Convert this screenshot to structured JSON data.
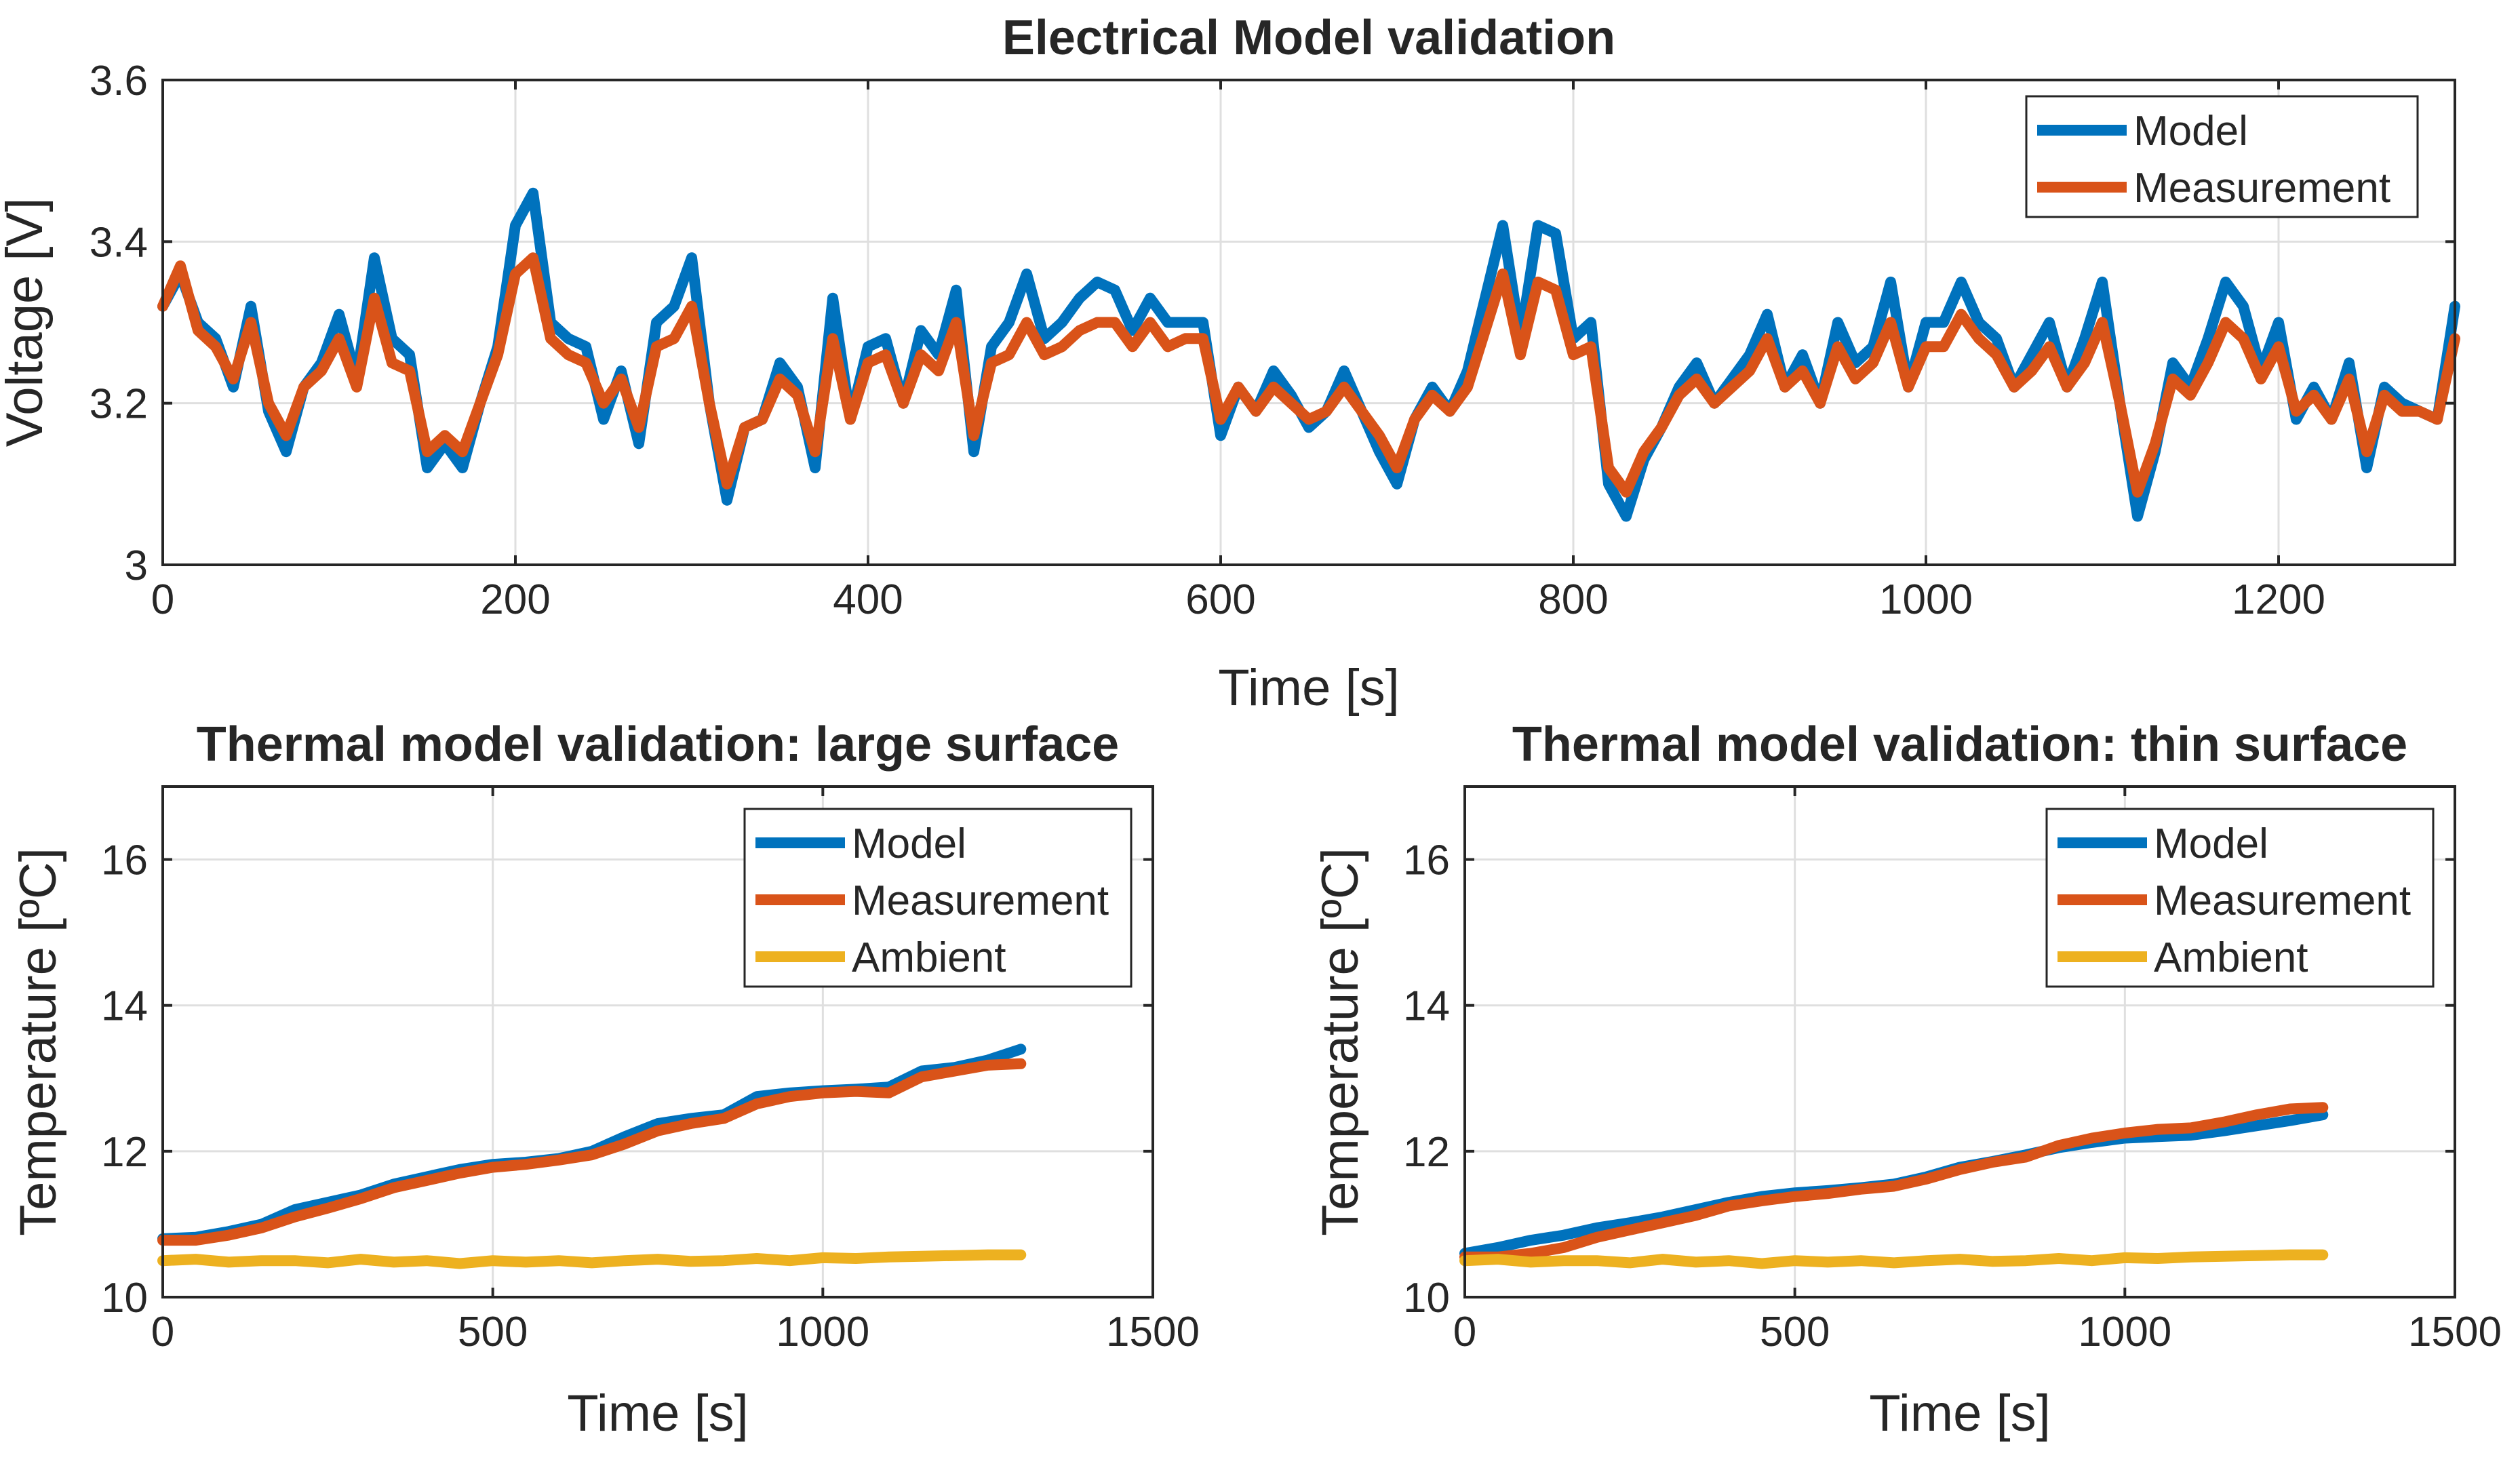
{
  "chart_data": [
    {
      "type": "line",
      "title": "Electrical Model validation",
      "xlabel": "Time [s]",
      "ylabel": "Voltage [V]",
      "xlim": [
        0,
        1300
      ],
      "ylim": [
        3.0,
        3.6
      ],
      "xticks": [
        0,
        200,
        400,
        600,
        800,
        1000,
        1200
      ],
      "yticks": [
        3.0,
        3.2,
        3.4,
        3.6
      ],
      "xtick_labels": [
        "0",
        "200",
        "400",
        "600",
        "800",
        "1000",
        "1200"
      ],
      "ytick_labels": [
        "3",
        "3.2",
        "3.4",
        "3.6"
      ],
      "grid": true,
      "legend_position": "top-right",
      "x": [
        0,
        10,
        20,
        30,
        40,
        50,
        60,
        70,
        80,
        90,
        100,
        110,
        120,
        130,
        140,
        150,
        160,
        170,
        180,
        190,
        200,
        210,
        220,
        230,
        240,
        250,
        260,
        270,
        280,
        290,
        300,
        310,
        320,
        330,
        340,
        350,
        360,
        370,
        380,
        390,
        400,
        410,
        420,
        430,
        440,
        450,
        460,
        470,
        480,
        490,
        500,
        510,
        520,
        530,
        540,
        550,
        560,
        570,
        580,
        590,
        600,
        610,
        620,
        630,
        640,
        650,
        660,
        670,
        680,
        690,
        700,
        710,
        720,
        730,
        740,
        750,
        760,
        770,
        780,
        790,
        800,
        810,
        820,
        830,
        840,
        850,
        860,
        870,
        880,
        890,
        900,
        910,
        920,
        930,
        940,
        950,
        960,
        970,
        980,
        990,
        1000,
        1010,
        1020,
        1030,
        1040,
        1050,
        1060,
        1070,
        1080,
        1090,
        1100,
        1110,
        1120,
        1130,
        1140,
        1150,
        1160,
        1170,
        1180,
        1190,
        1200,
        1210,
        1220,
        1230,
        1240,
        1250,
        1260,
        1270,
        1280,
        1290,
        1300
      ],
      "series": [
        {
          "name": "Model",
          "color": "#0072bd",
          "values": [
            3.32,
            3.36,
            3.3,
            3.28,
            3.22,
            3.32,
            3.19,
            3.14,
            3.22,
            3.25,
            3.31,
            3.23,
            3.38,
            3.28,
            3.26,
            3.12,
            3.15,
            3.12,
            3.2,
            3.27,
            3.42,
            3.46,
            3.3,
            3.28,
            3.27,
            3.18,
            3.24,
            3.15,
            3.3,
            3.32,
            3.38,
            3.2,
            3.08,
            3.17,
            3.18,
            3.25,
            3.22,
            3.12,
            3.33,
            3.18,
            3.27,
            3.28,
            3.2,
            3.29,
            3.26,
            3.34,
            3.14,
            3.27,
            3.3,
            3.36,
            3.28,
            3.3,
            3.33,
            3.35,
            3.34,
            3.29,
            3.33,
            3.3,
            3.3,
            3.3,
            3.16,
            3.22,
            3.19,
            3.24,
            3.21,
            3.17,
            3.19,
            3.24,
            3.19,
            3.14,
            3.1,
            3.18,
            3.22,
            3.19,
            3.24,
            3.33,
            3.42,
            3.28,
            3.42,
            3.41,
            3.28,
            3.3,
            3.1,
            3.06,
            3.13,
            3.17,
            3.22,
            3.25,
            3.2,
            3.23,
            3.26,
            3.31,
            3.22,
            3.26,
            3.2,
            3.3,
            3.25,
            3.27,
            3.35,
            3.22,
            3.3,
            3.3,
            3.35,
            3.3,
            3.28,
            3.22,
            3.26,
            3.3,
            3.22,
            3.28,
            3.35,
            3.2,
            3.06,
            3.14,
            3.25,
            3.22,
            3.28,
            3.35,
            3.32,
            3.24,
            3.3,
            3.18,
            3.22,
            3.18,
            3.25,
            3.12,
            3.22,
            3.2,
            3.19,
            3.18,
            3.32
          ]
        },
        {
          "name": "Measurement",
          "color": "#d95319",
          "values": [
            3.32,
            3.37,
            3.29,
            3.27,
            3.23,
            3.3,
            3.2,
            3.16,
            3.22,
            3.24,
            3.28,
            3.22,
            3.33,
            3.25,
            3.24,
            3.14,
            3.16,
            3.14,
            3.2,
            3.26,
            3.36,
            3.38,
            3.28,
            3.26,
            3.25,
            3.2,
            3.23,
            3.17,
            3.27,
            3.28,
            3.32,
            3.2,
            3.1,
            3.17,
            3.18,
            3.23,
            3.21,
            3.14,
            3.28,
            3.18,
            3.25,
            3.26,
            3.2,
            3.26,
            3.24,
            3.3,
            3.16,
            3.25,
            3.26,
            3.3,
            3.26,
            3.27,
            3.29,
            3.3,
            3.3,
            3.27,
            3.3,
            3.27,
            3.28,
            3.28,
            3.18,
            3.22,
            3.19,
            3.22,
            3.2,
            3.18,
            3.19,
            3.22,
            3.19,
            3.16,
            3.12,
            3.18,
            3.21,
            3.19,
            3.22,
            3.29,
            3.36,
            3.26,
            3.35,
            3.34,
            3.26,
            3.27,
            3.12,
            3.09,
            3.14,
            3.17,
            3.21,
            3.23,
            3.2,
            3.22,
            3.24,
            3.28,
            3.22,
            3.24,
            3.2,
            3.27,
            3.23,
            3.25,
            3.3,
            3.22,
            3.27,
            3.27,
            3.31,
            3.28,
            3.26,
            3.22,
            3.24,
            3.27,
            3.22,
            3.25,
            3.3,
            3.2,
            3.09,
            3.15,
            3.23,
            3.21,
            3.25,
            3.3,
            3.28,
            3.23,
            3.27,
            3.19,
            3.21,
            3.18,
            3.23,
            3.14,
            3.21,
            3.19,
            3.19,
            3.18,
            3.28
          ]
        }
      ]
    },
    {
      "type": "line",
      "title": "Thermal model validation: large surface",
      "xlabel": "Time [s]",
      "ylabel": "Temperature [ºC]",
      "xlim": [
        0,
        1500
      ],
      "ylim": [
        10,
        17
      ],
      "xticks": [
        0,
        500,
        1000,
        1500
      ],
      "yticks": [
        10,
        12,
        14,
        16
      ],
      "xtick_labels": [
        "0",
        "500",
        "1000",
        "1500"
      ],
      "ytick_labels": [
        "10",
        "12",
        "14",
        "16"
      ],
      "grid": true,
      "legend_position": "top-right",
      "x": [
        0,
        50,
        100,
        150,
        200,
        250,
        300,
        350,
        400,
        450,
        500,
        550,
        600,
        650,
        700,
        750,
        800,
        850,
        900,
        950,
        1000,
        1050,
        1100,
        1150,
        1200,
        1250,
        1300
      ],
      "series": [
        {
          "name": "Model",
          "color": "#0072bd",
          "values": [
            10.8,
            10.82,
            10.9,
            11.0,
            11.2,
            11.3,
            11.4,
            11.55,
            11.65,
            11.75,
            11.82,
            11.85,
            11.9,
            12.0,
            12.2,
            12.38,
            12.45,
            12.5,
            12.75,
            12.8,
            12.83,
            12.85,
            12.88,
            13.1,
            13.15,
            13.25,
            13.4
          ]
        },
        {
          "name": "Measurement",
          "color": "#d95319",
          "values": [
            10.78,
            10.78,
            10.85,
            10.95,
            11.1,
            11.22,
            11.35,
            11.5,
            11.6,
            11.7,
            11.78,
            11.82,
            11.88,
            11.95,
            12.1,
            12.28,
            12.38,
            12.45,
            12.65,
            12.75,
            12.8,
            12.82,
            12.8,
            13.02,
            13.1,
            13.18,
            13.2
          ]
        },
        {
          "name": "Ambient",
          "color": "#edb120",
          "values": [
            10.5,
            10.52,
            10.48,
            10.5,
            10.5,
            10.47,
            10.52,
            10.48,
            10.5,
            10.46,
            10.5,
            10.48,
            10.5,
            10.47,
            10.5,
            10.52,
            10.49,
            10.5,
            10.53,
            10.5,
            10.54,
            10.53,
            10.55,
            10.56,
            10.57,
            10.58,
            10.58
          ]
        }
      ]
    },
    {
      "type": "line",
      "title": "Thermal model validation: thin surface",
      "xlabel": "Time [s]",
      "ylabel": "Temperature [ºC]",
      "xlim": [
        0,
        1500
      ],
      "ylim": [
        10,
        17
      ],
      "xticks": [
        0,
        500,
        1000,
        1500
      ],
      "yticks": [
        10,
        12,
        14,
        16
      ],
      "xtick_labels": [
        "0",
        "500",
        "1000",
        "1500"
      ],
      "ytick_labels": [
        "10",
        "12",
        "14",
        "16"
      ],
      "grid": true,
      "legend_position": "top-right",
      "x": [
        0,
        50,
        100,
        150,
        200,
        250,
        300,
        350,
        400,
        450,
        500,
        550,
        600,
        650,
        700,
        750,
        800,
        850,
        900,
        950,
        1000,
        1050,
        1100,
        1150,
        1200,
        1250,
        1300
      ],
      "series": [
        {
          "name": "Model",
          "color": "#0072bd",
          "values": [
            10.6,
            10.68,
            10.78,
            10.85,
            10.95,
            11.02,
            11.1,
            11.2,
            11.3,
            11.38,
            11.43,
            11.46,
            11.5,
            11.55,
            11.65,
            11.78,
            11.86,
            11.95,
            12.05,
            12.12,
            12.18,
            12.2,
            12.22,
            12.28,
            12.35,
            12.42,
            12.5
          ]
        },
        {
          "name": "Measurement",
          "color": "#d95319",
          "values": [
            10.55,
            10.55,
            10.6,
            10.68,
            10.82,
            10.92,
            11.02,
            11.12,
            11.25,
            11.32,
            11.38,
            11.42,
            11.48,
            11.52,
            11.62,
            11.75,
            11.85,
            11.92,
            12.08,
            12.18,
            12.25,
            12.3,
            12.32,
            12.4,
            12.5,
            12.58,
            12.6
          ]
        },
        {
          "name": "Ambient",
          "color": "#edb120",
          "values": [
            10.5,
            10.52,
            10.48,
            10.5,
            10.5,
            10.47,
            10.52,
            10.48,
            10.5,
            10.46,
            10.5,
            10.48,
            10.5,
            10.47,
            10.5,
            10.52,
            10.49,
            10.5,
            10.53,
            10.5,
            10.54,
            10.53,
            10.55,
            10.56,
            10.57,
            10.58,
            10.58
          ]
        }
      ]
    }
  ]
}
